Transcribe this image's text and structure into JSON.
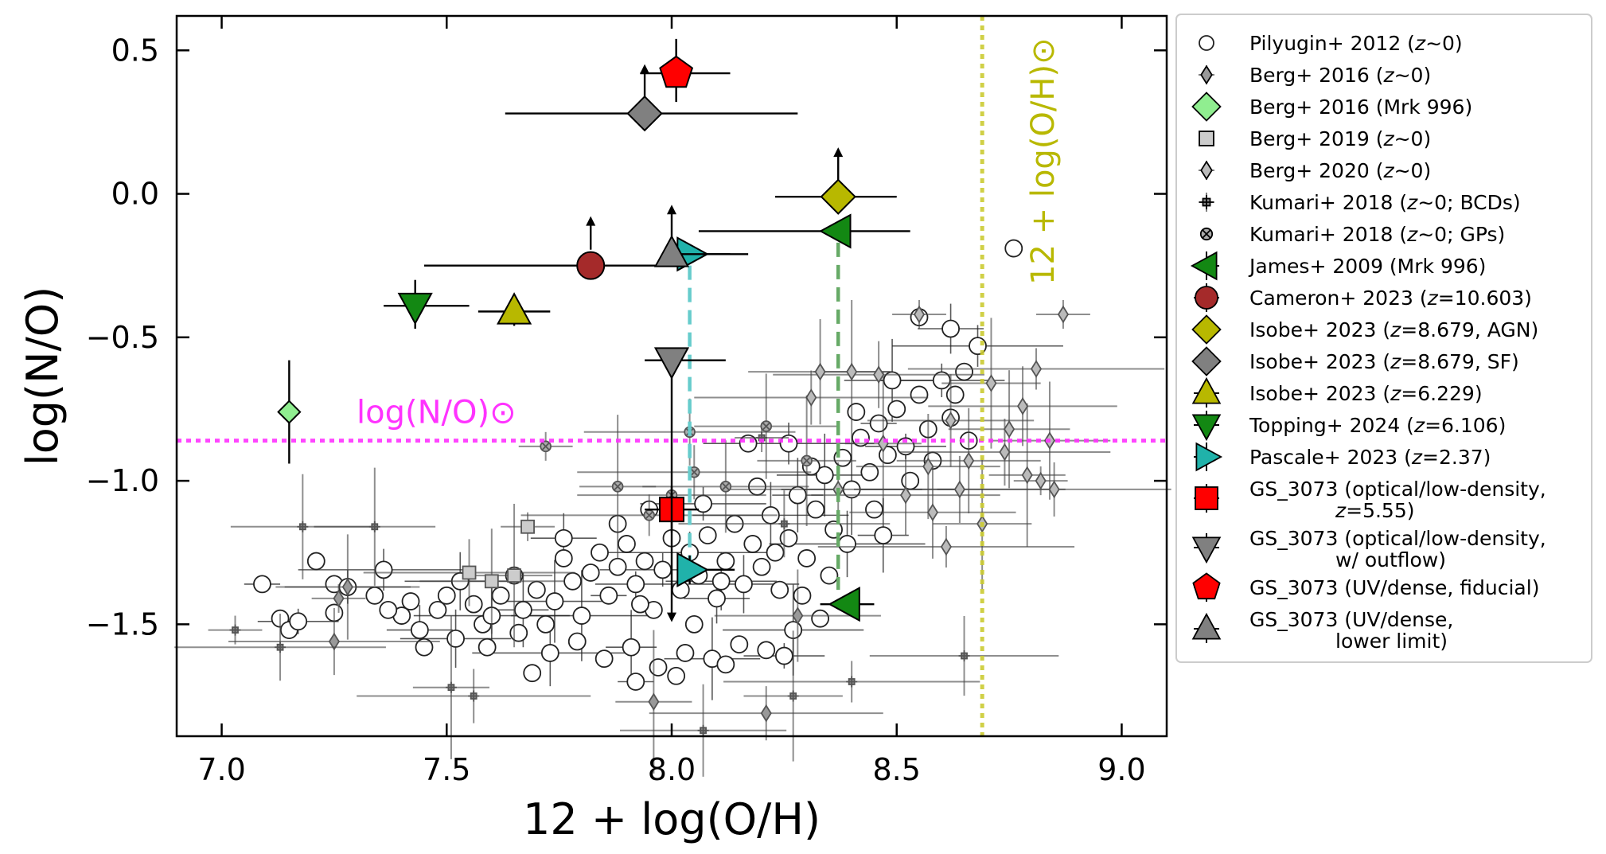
{
  "chart_data": {
    "type": "scatter",
    "xlabel": "12 + log(O/H)",
    "ylabel": "log(N/O)",
    "xlim": [
      6.9,
      9.1
    ],
    "ylim": [
      -1.89,
      0.62
    ],
    "xticks": [
      "7.0",
      "7.5",
      "8.0",
      "8.5",
      "9.0"
    ],
    "xtick_values": [
      7.0,
      7.5,
      8.0,
      8.5,
      9.0
    ],
    "yticks": [
      "0.5",
      "0.0",
      "−0.5",
      "−1.0",
      "−1.5"
    ],
    "ytick_values": [
      0.5,
      0.0,
      -0.5,
      -1.0,
      -1.5
    ],
    "grid": false,
    "legend_position": "outside-right",
    "reference_lines": {
      "solar_no": {
        "value": -0.86,
        "label": "log(N/O)⊙",
        "color": "#ff33ff"
      },
      "solar_oh": {
        "value": 8.69,
        "label": "12 + log(O/H)⊙",
        "color": "#cccc33"
      }
    },
    "connectors": [
      {
        "color": "#66cccc",
        "x": [
          8.04,
          8.04
        ],
        "y": [
          -0.25,
          -1.28
        ]
      },
      {
        "color": "#66aa66",
        "x": [
          8.37,
          8.37
        ],
        "y": [
          -0.17,
          -1.38
        ]
      }
    ],
    "background_series": [
      {
        "name": "Pilyugin+ 2012 (z∼0)",
        "marker": "circle",
        "color": "#ffffff",
        "points": [
          [
            7.09,
            -1.36
          ],
          [
            7.13,
            -1.48
          ],
          [
            7.15,
            -1.52
          ],
          [
            7.17,
            -1.49
          ],
          [
            7.21,
            -1.28
          ],
          [
            7.25,
            -1.36
          ],
          [
            7.28,
            -1.37
          ],
          [
            7.25,
            -1.46
          ],
          [
            7.34,
            -1.4
          ],
          [
            7.36,
            -1.31
          ],
          [
            7.4,
            -1.47
          ],
          [
            7.42,
            -1.42
          ],
          [
            7.44,
            -1.52
          ],
          [
            7.48,
            -1.45
          ],
          [
            7.5,
            -1.4
          ],
          [
            7.53,
            -1.35
          ],
          [
            7.56,
            -1.43
          ],
          [
            7.58,
            -1.5
          ],
          [
            7.6,
            -1.47
          ],
          [
            7.62,
            -1.4
          ],
          [
            7.65,
            -1.33
          ],
          [
            7.67,
            -1.45
          ],
          [
            7.7,
            -1.38
          ],
          [
            7.72,
            -1.5
          ],
          [
            7.74,
            -1.42
          ],
          [
            7.76,
            -1.27
          ],
          [
            7.78,
            -1.35
          ],
          [
            7.8,
            -1.47
          ],
          [
            7.82,
            -1.32
          ],
          [
            7.84,
            -1.25
          ],
          [
            7.86,
            -1.4
          ],
          [
            7.88,
            -1.3
          ],
          [
            7.9,
            -1.22
          ],
          [
            7.92,
            -1.36
          ],
          [
            7.94,
            -1.28
          ],
          [
            7.96,
            -1.45
          ],
          [
            7.98,
            -1.31
          ],
          [
            8.0,
            -1.2
          ],
          [
            8.02,
            -1.38
          ],
          [
            8.04,
            -1.25
          ],
          [
            8.06,
            -1.33
          ],
          [
            8.08,
            -1.19
          ],
          [
            8.1,
            -1.41
          ],
          [
            8.12,
            -1.28
          ],
          [
            8.14,
            -1.15
          ],
          [
            8.16,
            -1.36
          ],
          [
            8.18,
            -1.22
          ],
          [
            8.2,
            -1.3
          ],
          [
            8.22,
            -1.12
          ],
          [
            8.24,
            -1.38
          ],
          [
            8.26,
            -1.2
          ],
          [
            8.28,
            -1.05
          ],
          [
            8.3,
            -1.27
          ],
          [
            8.32,
            -1.1
          ],
          [
            8.34,
            -0.98
          ],
          [
            8.36,
            -1.17
          ],
          [
            8.38,
            -0.92
          ],
          [
            8.4,
            -1.03
          ],
          [
            8.42,
            -0.85
          ],
          [
            8.44,
            -0.97
          ],
          [
            8.46,
            -0.8
          ],
          [
            8.48,
            -0.91
          ],
          [
            8.5,
            -0.75
          ],
          [
            8.52,
            -0.88
          ],
          [
            8.55,
            -0.7
          ],
          [
            8.57,
            -0.82
          ],
          [
            8.6,
            -0.65
          ],
          [
            8.62,
            -0.78
          ],
          [
            8.65,
            -0.62
          ],
          [
            8.68,
            -0.53
          ],
          [
            8.76,
            -0.19
          ],
          [
            8.55,
            -0.43
          ],
          [
            8.62,
            -0.47
          ],
          [
            7.37,
            -1.45
          ],
          [
            7.45,
            -1.58
          ],
          [
            7.52,
            -1.55
          ],
          [
            7.59,
            -1.58
          ],
          [
            7.66,
            -1.53
          ],
          [
            7.73,
            -1.6
          ],
          [
            7.79,
            -1.56
          ],
          [
            7.85,
            -1.62
          ],
          [
            7.91,
            -1.58
          ],
          [
            7.97,
            -1.65
          ],
          [
            8.03,
            -1.6
          ],
          [
            8.09,
            -1.62
          ],
          [
            8.15,
            -1.57
          ],
          [
            8.21,
            -1.59
          ],
          [
            8.27,
            -1.52
          ],
          [
            8.33,
            -1.48
          ],
          [
            7.69,
            -1.67
          ],
          [
            7.92,
            -1.7
          ],
          [
            8.01,
            -1.68
          ],
          [
            8.12,
            -1.64
          ],
          [
            8.25,
            -1.61
          ],
          [
            7.88,
            -1.15
          ],
          [
            7.95,
            -1.1
          ],
          [
            8.07,
            -1.08
          ],
          [
            8.19,
            -1.02
          ],
          [
            8.31,
            -0.95
          ],
          [
            8.26,
            -0.87
          ],
          [
            8.17,
            -0.87
          ],
          [
            8.35,
            -1.33
          ],
          [
            7.76,
            -1.2
          ],
          [
            7.93,
            -1.43
          ],
          [
            8.05,
            -1.5
          ],
          [
            8.11,
            -1.35
          ],
          [
            8.23,
            -1.25
          ],
          [
            8.29,
            -1.4
          ],
          [
            8.39,
            -1.22
          ],
          [
            8.45,
            -1.1
          ],
          [
            8.53,
            -1.0
          ],
          [
            8.47,
            -1.19
          ],
          [
            8.58,
            -0.93
          ],
          [
            8.41,
            -0.76
          ],
          [
            8.49,
            -0.65
          ],
          [
            8.63,
            -0.7
          ],
          [
            8.66,
            -0.86
          ]
        ]
      },
      {
        "name": "Berg+ 2016 (z∼0)",
        "marker": "thin-diamond",
        "color": "#999999",
        "points": [
          [
            7.26,
            -1.41
          ],
          [
            7.25,
            -1.56
          ],
          [
            7.28,
            -1.37
          ],
          [
            7.96,
            -1.77
          ],
          [
            8.21,
            -1.81
          ],
          [
            8.28,
            -1.47
          ]
        ]
      },
      {
        "name": "Berg+ 2019 (z∼0)",
        "marker": "square",
        "color": "#cccccc",
        "points": [
          [
            7.68,
            -1.16
          ],
          [
            7.55,
            -1.32
          ],
          [
            7.6,
            -1.35
          ],
          [
            7.65,
            -1.33
          ]
        ]
      },
      {
        "name": "Berg+ 2020 (z∼0)",
        "marker": "thin-diamond",
        "color": "#bbbbbb",
        "points": [
          [
            8.55,
            -0.42
          ],
          [
            8.46,
            -0.63
          ],
          [
            8.33,
            -0.62
          ],
          [
            8.4,
            -0.62
          ],
          [
            8.31,
            -0.71
          ],
          [
            8.62,
            -0.79
          ],
          [
            8.71,
            -0.66
          ],
          [
            8.81,
            -0.61
          ],
          [
            8.78,
            -0.74
          ],
          [
            8.84,
            -0.86
          ],
          [
            8.87,
            -0.42
          ],
          [
            8.74,
            -0.9
          ],
          [
            8.66,
            -0.93
          ],
          [
            8.79,
            -0.98
          ],
          [
            8.85,
            -1.03
          ],
          [
            8.58,
            -1.11
          ],
          [
            8.69,
            -1.15
          ],
          [
            8.61,
            -1.23
          ],
          [
            8.52,
            -1.05
          ],
          [
            8.75,
            -0.82
          ],
          [
            8.82,
            -1.0
          ],
          [
            8.64,
            -1.03
          ],
          [
            8.57,
            -0.95
          ],
          [
            8.47,
            -0.87
          ],
          [
            8.37,
            -1.03
          ]
        ]
      },
      {
        "name": "Kumari+ 2018 (z∼0; BCDs)",
        "marker": "plus",
        "color": "#888888",
        "points": [
          [
            7.03,
            -1.52
          ],
          [
            7.13,
            -1.58
          ],
          [
            7.18,
            -1.16
          ],
          [
            7.51,
            -1.72
          ],
          [
            7.56,
            -1.75
          ],
          [
            8.07,
            -1.87
          ],
          [
            8.27,
            -1.75
          ],
          [
            8.4,
            -1.7
          ],
          [
            8.65,
            -1.61
          ],
          [
            7.34,
            -1.16
          ],
          [
            8.2,
            -0.85
          ],
          [
            8.25,
            -1.15
          ]
        ]
      },
      {
        "name": "Kumari+ 2018 (z∼0; GPs)",
        "marker": "circle-x",
        "color": "#aaaaaa",
        "points": [
          [
            7.72,
            -0.88
          ],
          [
            8.04,
            -0.83
          ],
          [
            8.21,
            -0.81
          ],
          [
            7.88,
            -1.02
          ],
          [
            8.05,
            -0.97
          ],
          [
            8.12,
            -1.02
          ],
          [
            8.3,
            -0.93
          ],
          [
            7.95,
            -1.12
          ],
          [
            8.0,
            -1.05
          ]
        ]
      }
    ],
    "highlight_series": [
      {
        "name": "Berg+ 2016 (Mrk 996)",
        "marker": "diamond",
        "color": "#90ee90",
        "x": 7.15,
        "y": -0.76,
        "xerr": [
          0,
          0
        ],
        "yerr": [
          0.18,
          0.18
        ],
        "arrow": "none"
      },
      {
        "name": "James+ 2009 (Mrk 996)",
        "marker": "triangle-left",
        "color": "#138813",
        "x": 8.37,
        "y": -0.13,
        "xerr": [
          0.31,
          0.16
        ],
        "yerr": [
          0,
          0
        ],
        "arrow": "none",
        "second_point": {
          "x": 8.39,
          "y": -1.43,
          "xerr": [
            0.06,
            0.06
          ],
          "yerr": [
            0.03,
            0.03
          ]
        }
      },
      {
        "name": "Cameron+ 2023 (z=10.603)",
        "marker": "circle",
        "color": "#a52a2a",
        "x": 7.82,
        "y": -0.25,
        "xerr": [
          0.37,
          0.18
        ],
        "yerr": [
          0,
          0
        ],
        "arrow": "up"
      },
      {
        "name": "Isobe+ 2023 (z=8.679, AGN)",
        "marker": "diamond",
        "color": "#b8b800",
        "x": 8.37,
        "y": -0.01,
        "xerr": [
          0.14,
          0.13
        ],
        "yerr": [
          0,
          0
        ],
        "arrow": "up"
      },
      {
        "name": "Isobe+ 2023 (z=8.679, SF)",
        "marker": "diamond",
        "color": "#808080",
        "x": 7.94,
        "y": 0.28,
        "xerr": [
          0.31,
          0.34
        ],
        "yerr": [
          0,
          0
        ],
        "arrow": "up"
      },
      {
        "name": "Isobe+ 2023 (z=6.229)",
        "marker": "triangle-up",
        "color": "#b8b800",
        "x": 7.65,
        "y": -0.41,
        "xerr": [
          0.08,
          0.08
        ],
        "yerr": [
          0.05,
          0.05
        ],
        "arrow": "none"
      },
      {
        "name": "Topping+ 2024 (z=6.106)",
        "marker": "triangle-down",
        "color": "#138813",
        "x": 7.43,
        "y": -0.39,
        "xerr": [
          0.07,
          0.12
        ],
        "yerr": [
          0.08,
          0.09
        ],
        "arrow": "none"
      },
      {
        "name": "Pascale+ 2023 (z=2.37)",
        "marker": "triangle-right",
        "color": "#20b2aa",
        "x": 8.04,
        "y": -0.21,
        "xerr": [
          0.0,
          0.13
        ],
        "yerr": [
          0,
          0
        ],
        "arrow": "none",
        "second_point": {
          "x": 8.04,
          "y": -1.31,
          "xerr": [
            0.0,
            0.1
          ],
          "yerr": [
            0.05,
            0.05
          ]
        }
      },
      {
        "name": "GS_3073 (optical/low-density, z=5.55)",
        "marker": "square",
        "color": "#ff0000",
        "x": 8.0,
        "y": -1.1,
        "xerr": [
          0.06,
          0.06
        ],
        "yerr": [
          0.08,
          0.08
        ],
        "arrow": "none"
      },
      {
        "name": "GS_3073 (optical/low-density, w/ outflow)",
        "marker": "triangle-down",
        "color": "#808080",
        "x": 8.0,
        "y": -0.58,
        "xerr": [
          0.06,
          0.12
        ],
        "yerr": [
          0,
          0
        ],
        "arrow": "none",
        "yupper_line_to": -1.47
      },
      {
        "name": "GS_3073 (UV/dense, fiducial)",
        "marker": "pentagon",
        "color": "#ff0000",
        "x": 8.01,
        "y": 0.42,
        "xerr": [
          0.08,
          0.12
        ],
        "yerr": [
          0.1,
          0.12
        ],
        "arrow": "none"
      },
      {
        "name": "GS_3073 (UV/dense, lower limit)",
        "marker": "triangle-up-arrow",
        "color": "#808080",
        "x": 8.0,
        "y": -0.21,
        "xerr": [
          0.02,
          0.13
        ],
        "yerr": [
          0,
          0
        ],
        "arrow": "up"
      }
    ],
    "legend": [
      {
        "line1": "Pilyugin+ 2012 (",
        "italic": "z",
        "line1b": "∼0)",
        "marker": "circle",
        "color": "#ffffff",
        "small": true
      },
      {
        "line1": "Berg+ 2016 (",
        "italic": "z",
        "line1b": "∼0)",
        "marker": "thin-diamond",
        "color": "#999999",
        "small": true
      },
      {
        "line1": "Berg+ 2016 (Mrk 996)",
        "italic": "",
        "line1b": "",
        "marker": "diamond",
        "color": "#90ee90"
      },
      {
        "line1": "Berg+ 2019 (",
        "italic": "z",
        "line1b": "∼0)",
        "marker": "square",
        "color": "#cccccc",
        "small": true
      },
      {
        "line1": "Berg+ 2020 (",
        "italic": "z",
        "line1b": "∼0)",
        "marker": "thin-diamond",
        "color": "#bbbbbb",
        "small": true
      },
      {
        "line1": "Kumari+ 2018 (",
        "italic": "z",
        "line1b": "∼0; BCDs)",
        "marker": "plus",
        "color": "#888888",
        "small": true
      },
      {
        "line1": "Kumari+ 2018 (",
        "italic": "z",
        "line1b": "∼0; GPs)",
        "marker": "circle-x",
        "color": "#aaaaaa",
        "small": true
      },
      {
        "line1": "James+ 2009 (Mrk 996)",
        "italic": "",
        "line1b": "",
        "marker": "triangle-left",
        "color": "#138813"
      },
      {
        "line1": "Cameron+ 2023 (",
        "italic": "z",
        "line1b": "=10.603)",
        "marker": "circle",
        "color": "#a52a2a"
      },
      {
        "line1": "Isobe+ 2023 (",
        "italic": "z",
        "line1b": "=8.679, AGN)",
        "marker": "diamond",
        "color": "#b8b800"
      },
      {
        "line1": "Isobe+ 2023 (",
        "italic": "z",
        "line1b": "=8.679, SF)",
        "marker": "diamond",
        "color": "#808080"
      },
      {
        "line1": "Isobe+ 2023 (",
        "italic": "z",
        "line1b": "=6.229)",
        "marker": "triangle-up",
        "color": "#b8b800"
      },
      {
        "line1": "Topping+ 2024 (",
        "italic": "z",
        "line1b": "=6.106)",
        "marker": "triangle-down",
        "color": "#138813"
      },
      {
        "line1": "Pascale+ 2023 (",
        "italic": "z",
        "line1b": "=2.37)",
        "marker": "triangle-right",
        "color": "#20b2aa"
      },
      {
        "line1": "GS_3073 (optical/low-density,",
        "italic": "",
        "line1b": "",
        "line2_italic": "z",
        "line2": "=5.55)",
        "marker": "square",
        "color": "#ff0000"
      },
      {
        "line1": "GS_3073 (optical/low-density,",
        "italic": "",
        "line1b": "",
        "line2_italic": "",
        "line2": "w/ outflow)",
        "marker": "triangle-down",
        "color": "#808080"
      },
      {
        "line1": "GS_3073 (UV/dense, fiducial)",
        "italic": "",
        "line1b": "",
        "marker": "pentagon",
        "color": "#ff0000"
      },
      {
        "line1": "GS_3073 (UV/dense,",
        "italic": "",
        "line1b": "",
        "line2_italic": "",
        "line2": "lower limit)",
        "marker": "triangle-up",
        "color": "#808080"
      }
    ]
  }
}
